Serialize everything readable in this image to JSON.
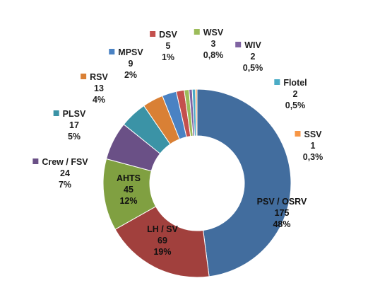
{
  "chart_data": {
    "type": "pie",
    "variant": "donut",
    "title": "",
    "legend": "none",
    "slices": [
      {
        "name": "PSV / OSRV",
        "value": 175,
        "percent": "48%",
        "color": "#426D9E",
        "label_placement": "inside"
      },
      {
        "name": "LH / SV",
        "value": 69,
        "percent": "19%",
        "color": "#A1403D",
        "label_placement": "inside"
      },
      {
        "name": "AHTS",
        "value": 45,
        "percent": "12%",
        "color": "#80A041",
        "label_placement": "inside"
      },
      {
        "name": "Crew / FSV",
        "value": 24,
        "percent": "7%",
        "color": "#6A5086",
        "label_placement": "outside"
      },
      {
        "name": "PLSV",
        "value": 17,
        "percent": "5%",
        "color": "#3B93A6",
        "label_placement": "outside"
      },
      {
        "name": "RSV",
        "value": 13,
        "percent": "4%",
        "color": "#D98035",
        "label_placement": "outside"
      },
      {
        "name": "MPSV",
        "value": 9,
        "percent": "2%",
        "color": "#4A82C3",
        "label_placement": "outside"
      },
      {
        "name": "DSV",
        "value": 5,
        "percent": "1%",
        "color": "#C4504D",
        "label_placement": "outside"
      },
      {
        "name": "WSV",
        "value": 3,
        "percent": "0,8%",
        "color": "#9CBC5A",
        "label_placement": "outside"
      },
      {
        "name": "WIV",
        "value": 2,
        "percent": "0,5%",
        "color": "#8064A2",
        "label_placement": "outside"
      },
      {
        "name": "Flotel",
        "value": 2,
        "percent": "0,5%",
        "color": "#4BACC6",
        "label_placement": "outside"
      },
      {
        "name": "SSV",
        "value": 1,
        "percent": "0,3%",
        "color": "#F79646",
        "label_placement": "outside"
      }
    ]
  }
}
